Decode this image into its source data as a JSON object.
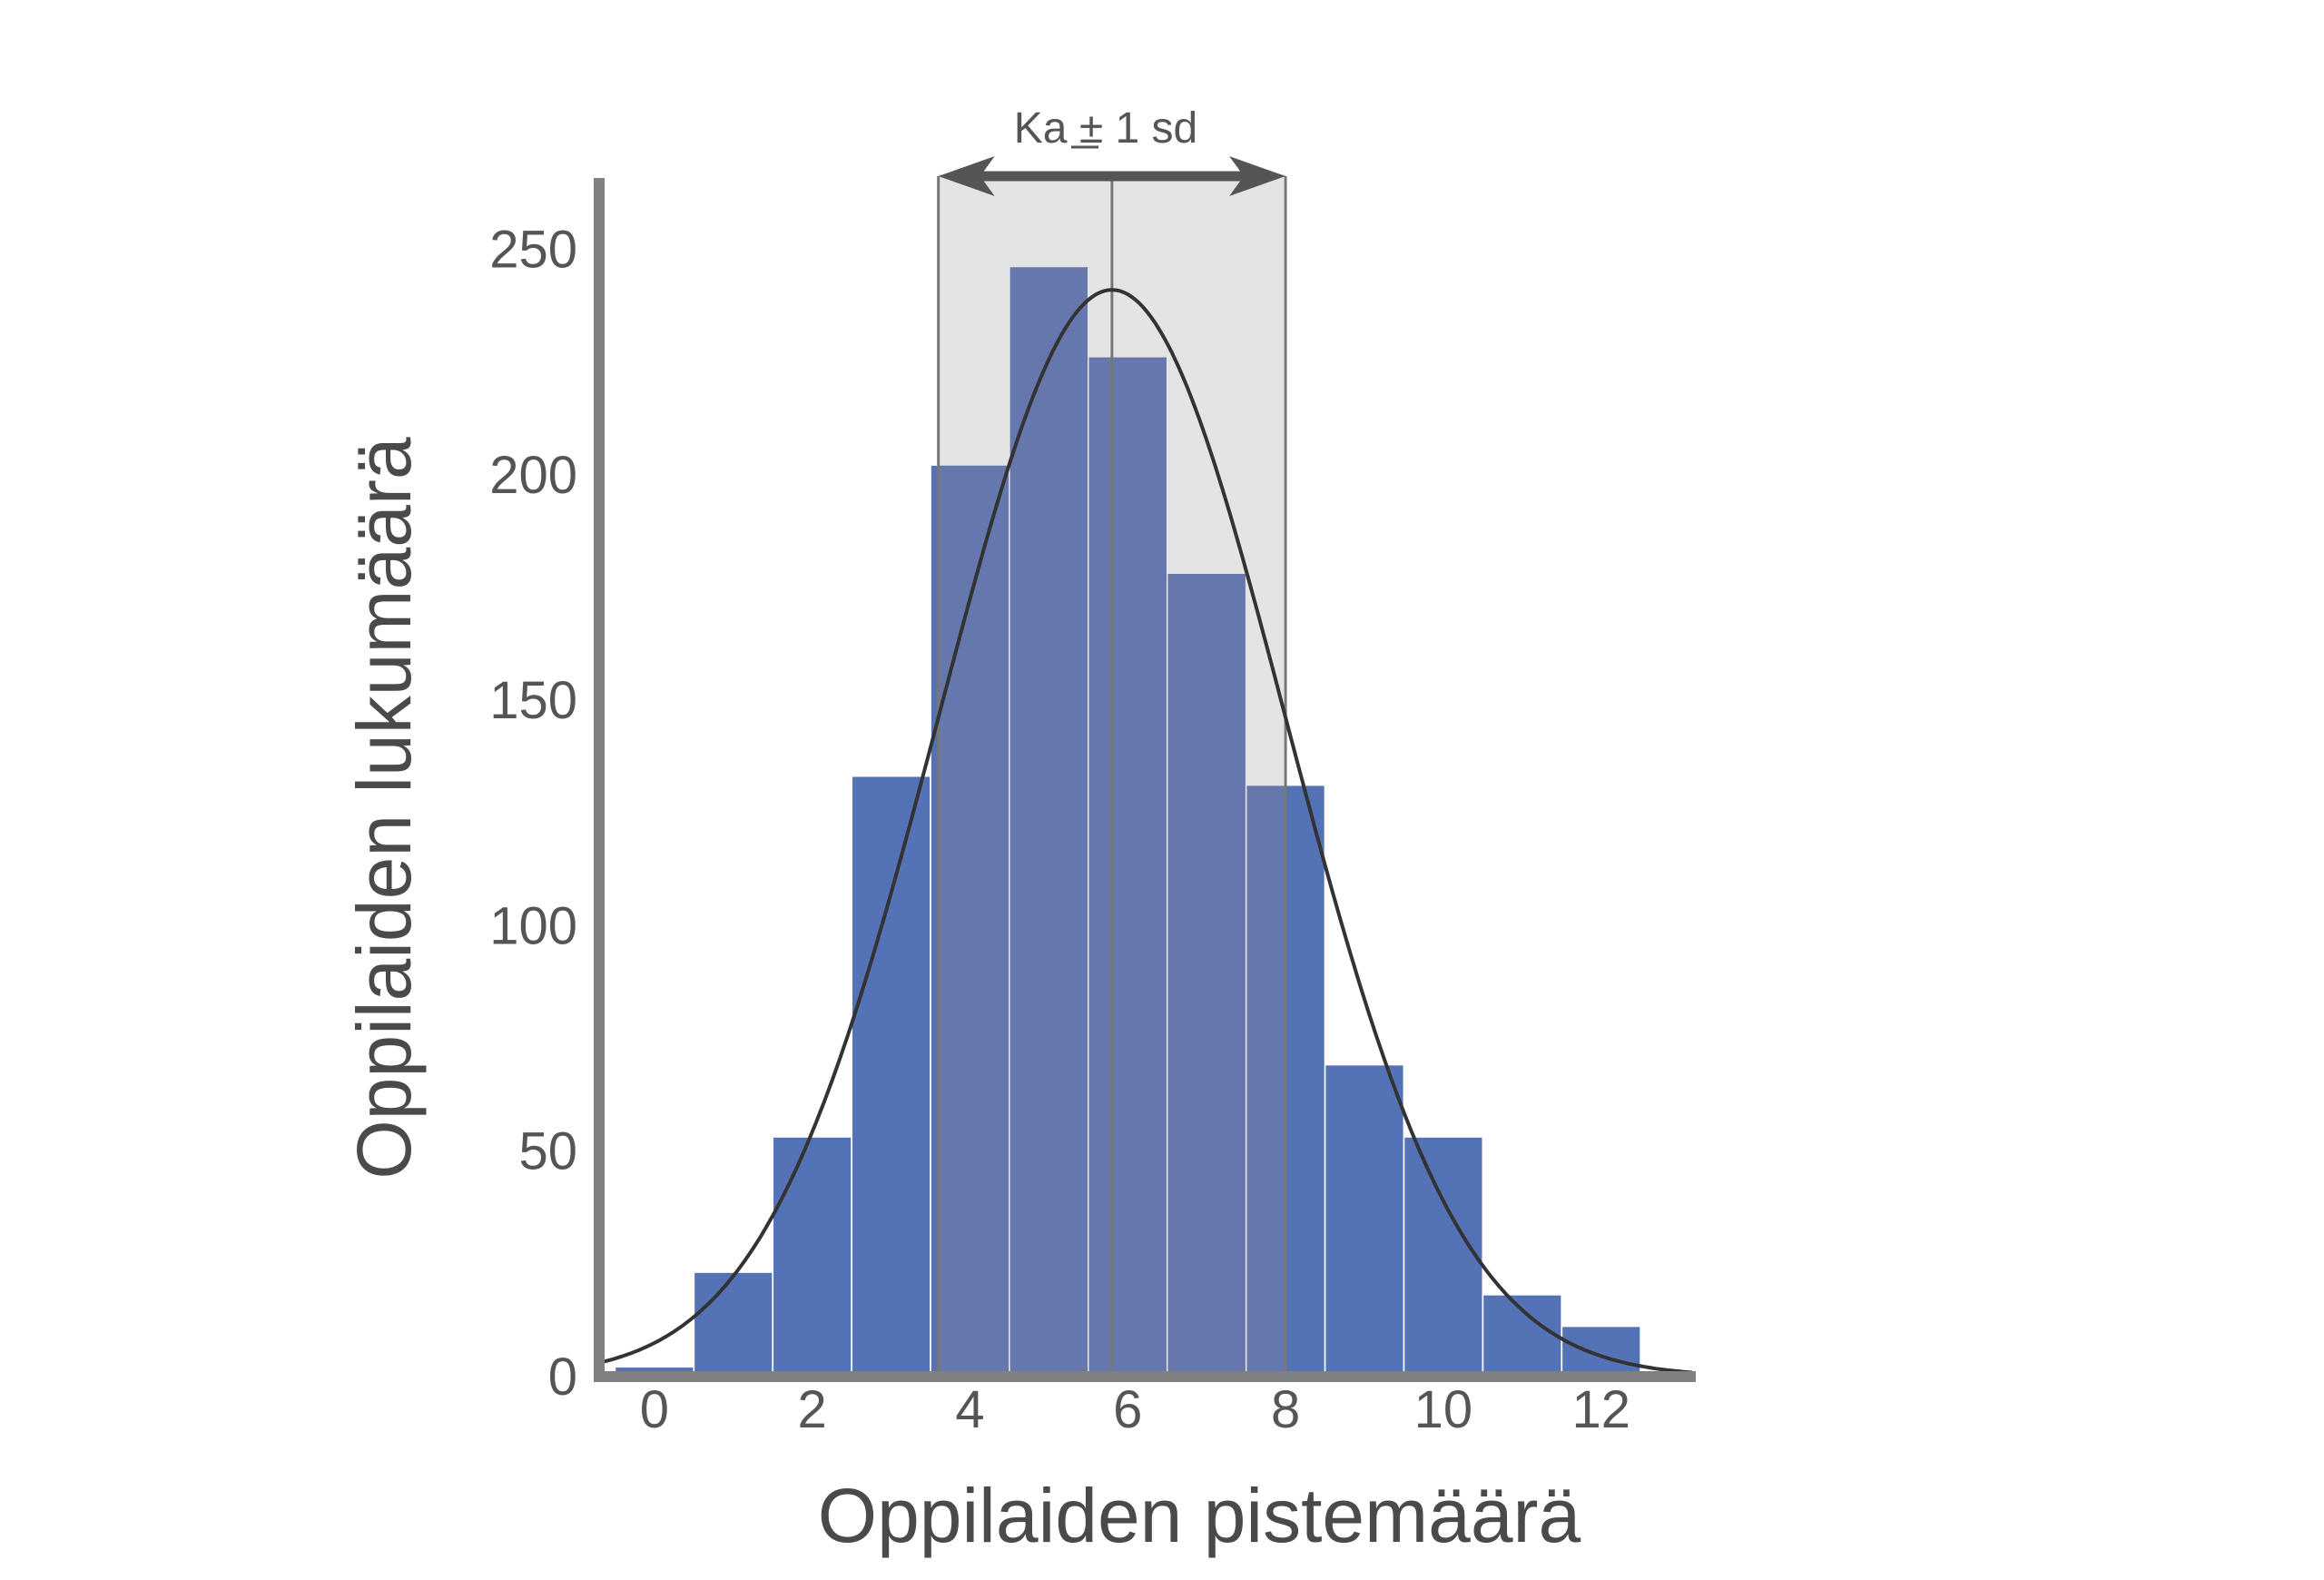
{
  "chart_data": {
    "type": "bar",
    "xlabel": "Oppilaiden pistemäärä",
    "ylabel": "Oppilaiden lukumäärä",
    "annotation": "Ka ± 1 sd",
    "categories": [
      0,
      1,
      2,
      3,
      4,
      5,
      6,
      7,
      8,
      9,
      10,
      11,
      12
    ],
    "values": [
      2,
      23,
      53,
      133,
      202,
      246,
      226,
      178,
      131,
      69,
      53,
      18,
      11
    ],
    "xlim": [
      -0.7,
      13.2
    ],
    "ylim": [
      0,
      265
    ],
    "x_ticks": [
      0,
      2,
      4,
      6,
      8,
      10,
      12
    ],
    "y_ticks": [
      0,
      50,
      100,
      150,
      200,
      250
    ],
    "mean": 5.8,
    "sd": 2.2,
    "shaded_range": [
      3.6,
      8.0
    ],
    "curve_peak": 241,
    "grid": false,
    "colors": {
      "bar": "#5472b6",
      "bar_in_band": "#6677ad",
      "band": "#e4e4e4",
      "band_edge": "#777777",
      "curve": "#333333",
      "axis": "#808080",
      "arrow": "#555555"
    }
  }
}
